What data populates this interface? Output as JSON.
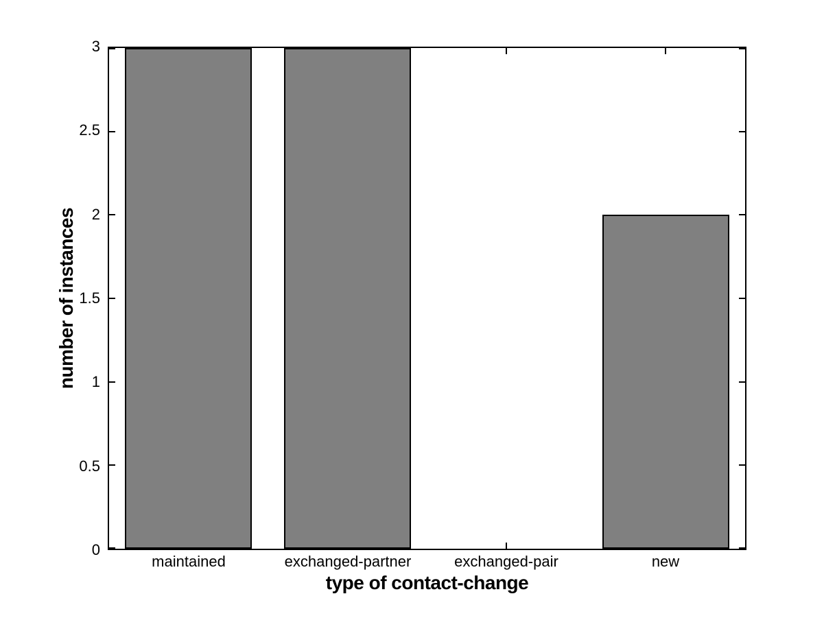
{
  "figure": {
    "background": "#ffffff"
  },
  "chart_data": {
    "type": "bar",
    "title": "",
    "categories": [
      "maintained",
      "exchanged-partner",
      "exchanged-pair",
      "new"
    ],
    "values": [
      3,
      3,
      0,
      2
    ],
    "xlabel": "type of contact-change",
    "ylabel": "number of instances",
    "ylim": [
      0,
      3
    ],
    "yticks": [
      0,
      0.5,
      1,
      1.5,
      2,
      2.5,
      3
    ],
    "ytick_labels": [
      "0",
      "0.5",
      "1",
      "1.5",
      "2",
      "2.5",
      "3"
    ],
    "bar_color": "#808080",
    "bar_edge_color": "#000000",
    "axis_color": "#000000",
    "plot_background": "#ffffff",
    "grid": false,
    "legend": null
  }
}
